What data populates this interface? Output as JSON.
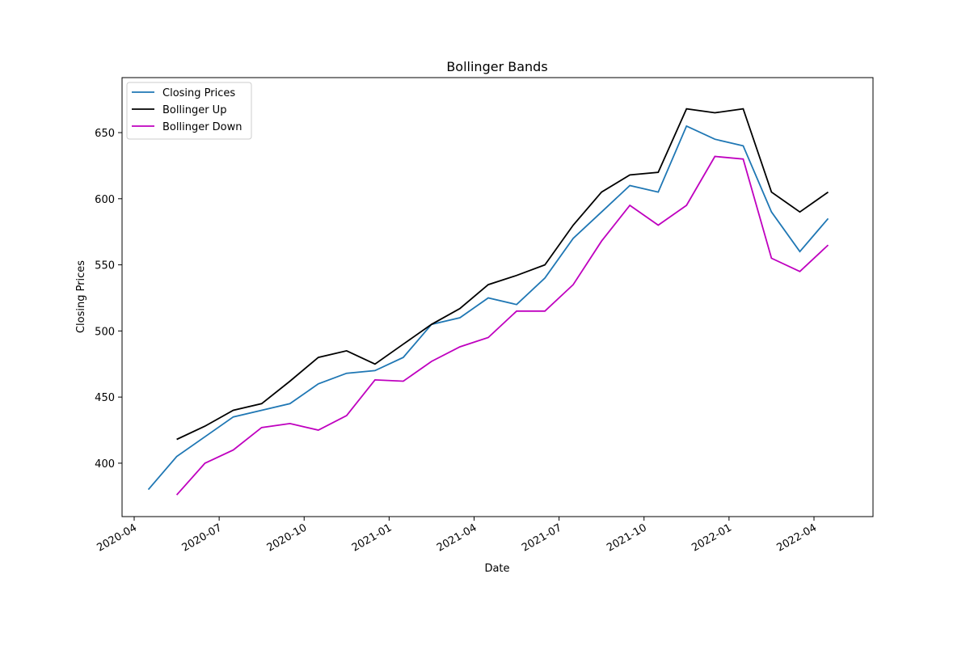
{
  "chart_data": {
    "type": "line",
    "title": "Bollinger Bands",
    "x_label": "Date",
    "y_label": "Closing Prices",
    "x": [
      "2020-04",
      "2020-05",
      "2020-06",
      "2020-07",
      "2020-08",
      "2020-09",
      "2020-10",
      "2020-11",
      "2020-12",
      "2021-01",
      "2021-02",
      "2021-03",
      "2021-04",
      "2021-05",
      "2021-06",
      "2021-07",
      "2021-08",
      "2021-09",
      "2021-10",
      "2021-11",
      "2021-12",
      "2022-01",
      "2022-02",
      "2022-03",
      "2022-04"
    ],
    "series": [
      {
        "name": "Closing Prices",
        "color": "#1f77b4",
        "values": [
          380,
          405,
          420,
          435,
          440,
          445,
          460,
          468,
          470,
          480,
          505,
          510,
          525,
          520,
          540,
          570,
          590,
          610,
          605,
          655,
          645,
          640,
          590,
          560,
          585
        ]
      },
      {
        "name": "Bollinger Up",
        "color": "#000000",
        "values": [
          null,
          418,
          428,
          440,
          445,
          462,
          480,
          485,
          475,
          490,
          505,
          517,
          535,
          542,
          550,
          580,
          605,
          618,
          620,
          668,
          665,
          668,
          605,
          590,
          605
        ]
      },
      {
        "name": "Bollinger Down",
        "color": "#bf00bf",
        "values": [
          null,
          376,
          400,
          410,
          427,
          430,
          425,
          436,
          463,
          462,
          477,
          488,
          495,
          515,
          515,
          535,
          568,
          595,
          580,
          595,
          632,
          630,
          555,
          545,
          565
        ]
      }
    ],
    "ylim": [
      359.6,
      691.6
    ],
    "yticks": [
      400,
      450,
      500,
      550,
      600,
      650
    ],
    "xticks": [
      "2020-04",
      "2020-07",
      "2020-10",
      "2021-01",
      "2021-04",
      "2021-07",
      "2021-10",
      "2022-01",
      "2022-04"
    ],
    "legend": "upper left",
    "grid": false
  }
}
